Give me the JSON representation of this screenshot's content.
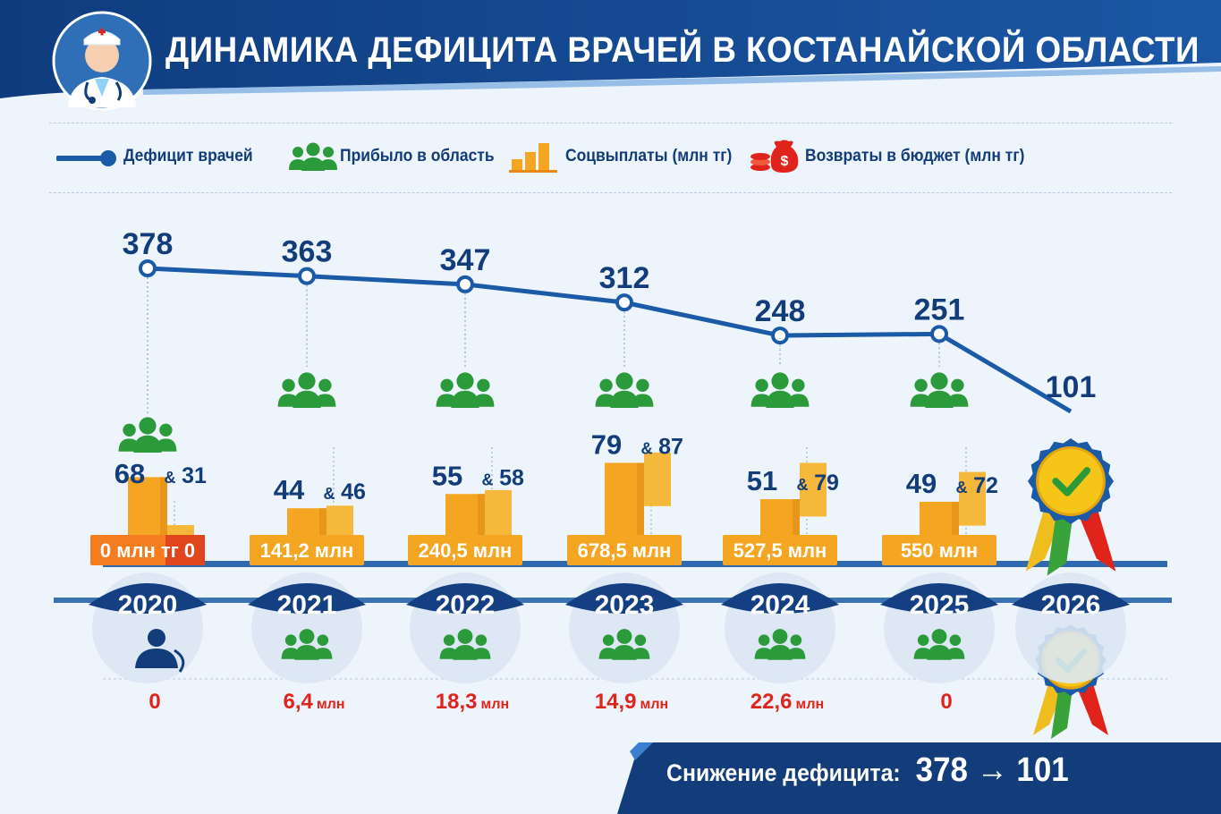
{
  "title": "ДИНАМИКА ДЕФИЦИТА ВРАЧЕЙ В КОСТАНАЙСКОЙ ОБЛАСТИ",
  "legend": {
    "deficit": "Дефицит врачей",
    "arrived": "Прибыло в область",
    "payments": "Соцвыплаты (млн тг)",
    "returns": "Возвраты в бюджет (млн тг)"
  },
  "colors": {
    "navy": "#123d7a",
    "blue": "#1a5aa6",
    "green": "#2b9a3b",
    "orange": "#f4a623",
    "red": "#e0241b",
    "bg": "#eef4fb"
  },
  "chart_data": {
    "type": "line",
    "title": "ДИНАМИКА ДЕФИЦИТА ВРАЧЕЙ В КОСТАНАЙСКОЙ ОБЛАСТИ",
    "categories": [
      "2020",
      "2021",
      "2022",
      "2023",
      "2024",
      "2025",
      "2026"
    ],
    "deficit": {
      "values": [
        378,
        363,
        347,
        312,
        248,
        251,
        101
      ],
      "labels": [
        "378",
        "363",
        "347",
        "312",
        "248",
        "251",
        "101"
      ]
    },
    "arrived_a": {
      "values": [
        68,
        44,
        55,
        79,
        51,
        49,
        null
      ],
      "labels": [
        "68",
        "44",
        "55",
        "79",
        "51",
        "49",
        ""
      ]
    },
    "arrived_b": {
      "values": [
        31,
        46,
        58,
        87,
        79,
        72,
        null
      ],
      "labels": [
        "31",
        "46",
        "58",
        "87",
        "79",
        "72",
        ""
      ]
    },
    "payments": {
      "values": [
        0,
        141.2,
        240.5,
        678.5,
        527.5,
        550,
        null
      ],
      "labels": [
        "0 млн тг 0",
        "141,2 млн",
        "240,5 млн",
        "678,5 млн",
        "527,5 млн",
        "550 млн",
        ""
      ]
    },
    "returns": {
      "values": [
        0,
        6.4,
        18.3,
        14.9,
        22.6,
        0,
        null
      ],
      "labels": [
        "0",
        "6,4 млн",
        "18,3 млн",
        "14,9 млн",
        "22,6 млн",
        "0",
        ""
      ]
    }
  },
  "summary": {
    "label": "Снижение дефицита:",
    "value": "378 → 101"
  }
}
